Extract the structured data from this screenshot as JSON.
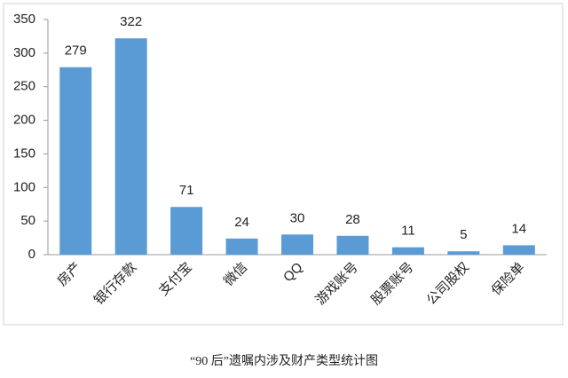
{
  "chart_data": {
    "type": "bar",
    "title": "“90 后”遗嘱内涉及财产类型统计图",
    "categories": [
      "房产",
      "银行存款",
      "支付宝",
      "微信",
      "QQ",
      "游戏账号",
      "股票账号",
      "公司股权",
      "保险单"
    ],
    "values": [
      279,
      322,
      71,
      24,
      30,
      28,
      11,
      5,
      14
    ],
    "color": "#5b9bd5",
    "ylim": [
      0,
      350
    ],
    "yticks": [
      0,
      50,
      100,
      150,
      200,
      250,
      300,
      350
    ],
    "grid": false
  }
}
